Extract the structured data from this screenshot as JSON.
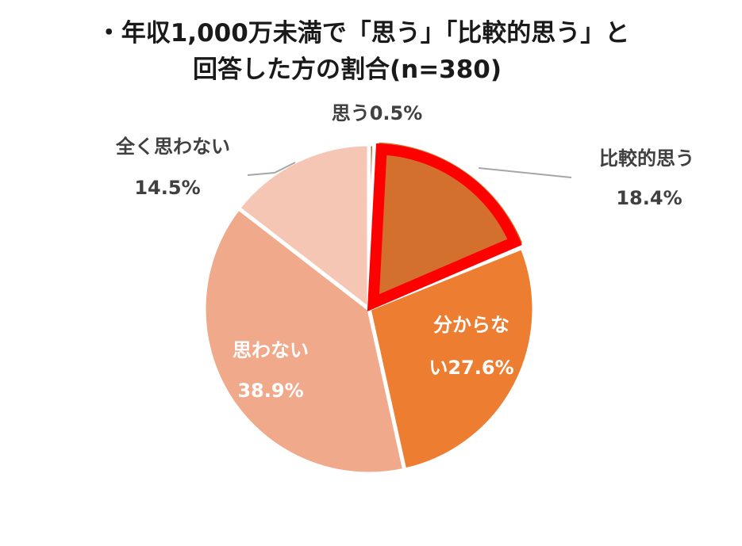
{
  "chart_data": {
    "type": "pie",
    "title_line1": "・年収1,000万未満で「思う」「比較的思う」と",
    "title_line2": "回答した方の割合(n=380)",
    "slices": [
      {
        "name": "思う",
        "value": 0.5,
        "label": "思う0.5%",
        "color": "#b8501a"
      },
      {
        "name": "比較的思う",
        "value": 18.4,
        "label_line1": "比較的思う",
        "label_line2": "18.4%",
        "color": "#d4702e",
        "highlighted": true
      },
      {
        "name": "分からない",
        "value": 27.6,
        "label_line1": "分からな",
        "label_line2": "い27.6%",
        "color": "#ed7d31"
      },
      {
        "name": "思わない",
        "value": 38.9,
        "label_line1": "思わない",
        "label_line2": "38.9%",
        "color": "#f0a98a"
      },
      {
        "name": "全く思わない",
        "value": 14.5,
        "label_line1": "全く思わない",
        "label_line2": "14.5%",
        "color": "#f5c6b4"
      }
    ],
    "highlight_color": "#ff0000"
  }
}
